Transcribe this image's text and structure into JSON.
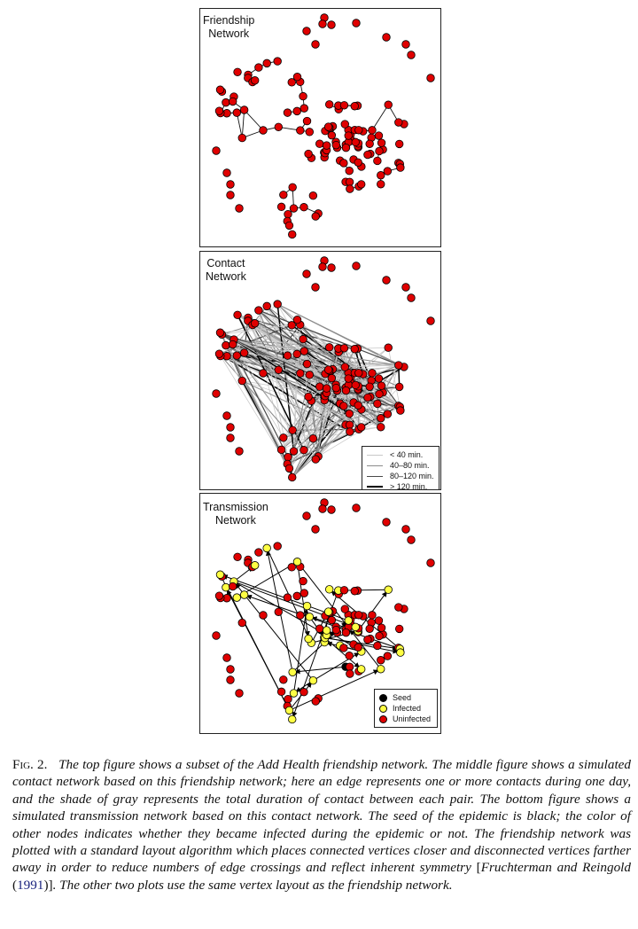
{
  "panels": {
    "friendship": {
      "title_line1": "Friendship",
      "title_line2": "Network"
    },
    "contact": {
      "title_line1": "Contact",
      "title_line2": "Network",
      "legend": [
        {
          "label": "< 40 min.",
          "color": "#c8c8c8",
          "weight": 1
        },
        {
          "label": "40–80 min.",
          "color": "#8c8c8c",
          "weight": 1.4
        },
        {
          "label": "80–120 min.",
          "color": "#4a4a4a",
          "weight": 1.6
        },
        {
          "label": "> 120 min.",
          "color": "#000000",
          "weight": 2
        }
      ]
    },
    "transmission": {
      "title_line1": "Transmission",
      "title_line2": "Network",
      "legend": [
        {
          "label": "Seed",
          "color": "#000000"
        },
        {
          "label": "Infected",
          "color": "#ffff44"
        },
        {
          "label": "Uninfected",
          "color": "#e00000"
        }
      ]
    }
  },
  "colors": {
    "node_red": "#e00000",
    "node_yellow": "#ffff44",
    "node_seed": "#000000"
  },
  "caption": {
    "fig_label": "Fig. 2.",
    "text_part1": "The top figure shows a subset of the Add Health friendship network. The middle figure shows a simulated contact network based on this friendship network; here an edge represents one or more contacts during one day, and the shade of gray represents the total duration of contact between each pair. The bottom figure shows a simulated transmission network based on this contact network. The seed of the epidemic is black; the color of other nodes indicates whether they became infected during the epidemic or not. The friendship network was plotted with a standard layout algorithm which places connected vertices closer and disconnected vertices farther away in order to reduce numbers of edge crossings and reflect inherent symmetry ",
    "bracket_open": "[",
    "cite_authors": "Fruchterman and Reingold",
    "paren_open": " (",
    "cite_year": "1991",
    "paren_close": ")]",
    "text_part2": ". The other two plots use the same vertex layout as the friendship network."
  }
}
